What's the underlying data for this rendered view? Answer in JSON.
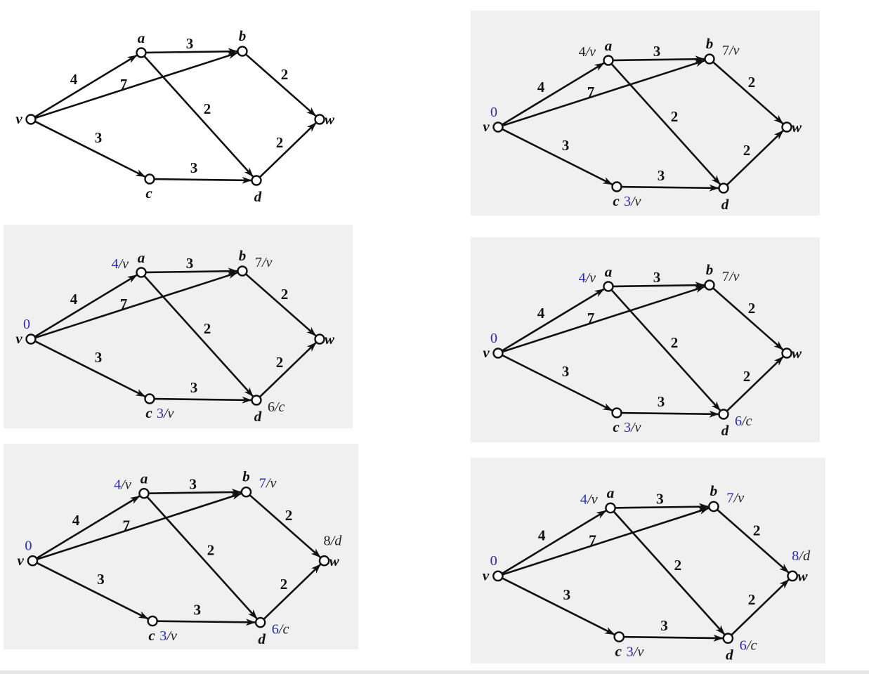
{
  "colors": {
    "highlight": "#2a2ab0",
    "normal": "#222222",
    "panel_bg": "#f0f0f0",
    "edge": "#111111"
  },
  "graph": {
    "nodes": [
      "v",
      "a",
      "b",
      "c",
      "d",
      "w"
    ],
    "edges": [
      {
        "from": "v",
        "to": "a",
        "weight": "4"
      },
      {
        "from": "v",
        "to": "b",
        "weight": "7"
      },
      {
        "from": "v",
        "to": "c",
        "weight": "3"
      },
      {
        "from": "a",
        "to": "b",
        "weight": "3"
      },
      {
        "from": "a",
        "to": "d",
        "weight": "2"
      },
      {
        "from": "b",
        "to": "w",
        "weight": "2"
      },
      {
        "from": "c",
        "to": "d",
        "weight": "3"
      },
      {
        "from": "d",
        "to": "w",
        "weight": "2"
      }
    ]
  },
  "panels": [
    {
      "labels": {}
    },
    {
      "labels": {
        "v": {
          "dist": "0",
          "pred": "",
          "highlighted": true
        },
        "a": {
          "dist": "4",
          "pred": "/v",
          "highlighted": false
        },
        "b": {
          "dist": "7",
          "pred": "/v",
          "highlighted": false
        },
        "c": {
          "dist": "3",
          "pred": "/v",
          "highlighted": true
        }
      }
    },
    {
      "labels": {
        "v": {
          "dist": "0",
          "pred": "",
          "highlighted": true
        },
        "a": {
          "dist": "4",
          "pred": "/v",
          "highlighted": true
        },
        "b": {
          "dist": "7",
          "pred": "/v",
          "highlighted": false
        },
        "c": {
          "dist": "3",
          "pred": "/v",
          "highlighted": true
        },
        "d": {
          "dist": "6",
          "pred": "/c",
          "highlighted": false
        }
      }
    },
    {
      "labels": {
        "v": {
          "dist": "0",
          "pred": "",
          "highlighted": true
        },
        "a": {
          "dist": "4",
          "pred": "/v",
          "highlighted": true
        },
        "b": {
          "dist": "7",
          "pred": "/v",
          "highlighted": false
        },
        "c": {
          "dist": "3",
          "pred": "/v",
          "highlighted": true
        },
        "d": {
          "dist": "6",
          "pred": "/c",
          "highlighted": true
        }
      }
    },
    {
      "labels": {
        "v": {
          "dist": "0",
          "pred": "",
          "highlighted": true
        },
        "a": {
          "dist": "4",
          "pred": "/v",
          "highlighted": true
        },
        "b": {
          "dist": "7",
          "pred": "/v",
          "highlighted": true
        },
        "c": {
          "dist": "3",
          "pred": "/v",
          "highlighted": true
        },
        "d": {
          "dist": "6",
          "pred": "/c",
          "highlighted": true
        },
        "w": {
          "dist": "8",
          "pred": "/d",
          "highlighted": false
        }
      }
    },
    {
      "labels": {
        "v": {
          "dist": "0",
          "pred": "",
          "highlighted": true
        },
        "a": {
          "dist": "4",
          "pred": "/v",
          "highlighted": true
        },
        "b": {
          "dist": "7",
          "pred": "/v",
          "highlighted": true
        },
        "c": {
          "dist": "3",
          "pred": "/v",
          "highlighted": true
        },
        "d": {
          "dist": "6",
          "pred": "/c",
          "highlighted": true
        },
        "w": {
          "dist": "8",
          "pred": "/d",
          "highlighted": true
        }
      }
    }
  ]
}
